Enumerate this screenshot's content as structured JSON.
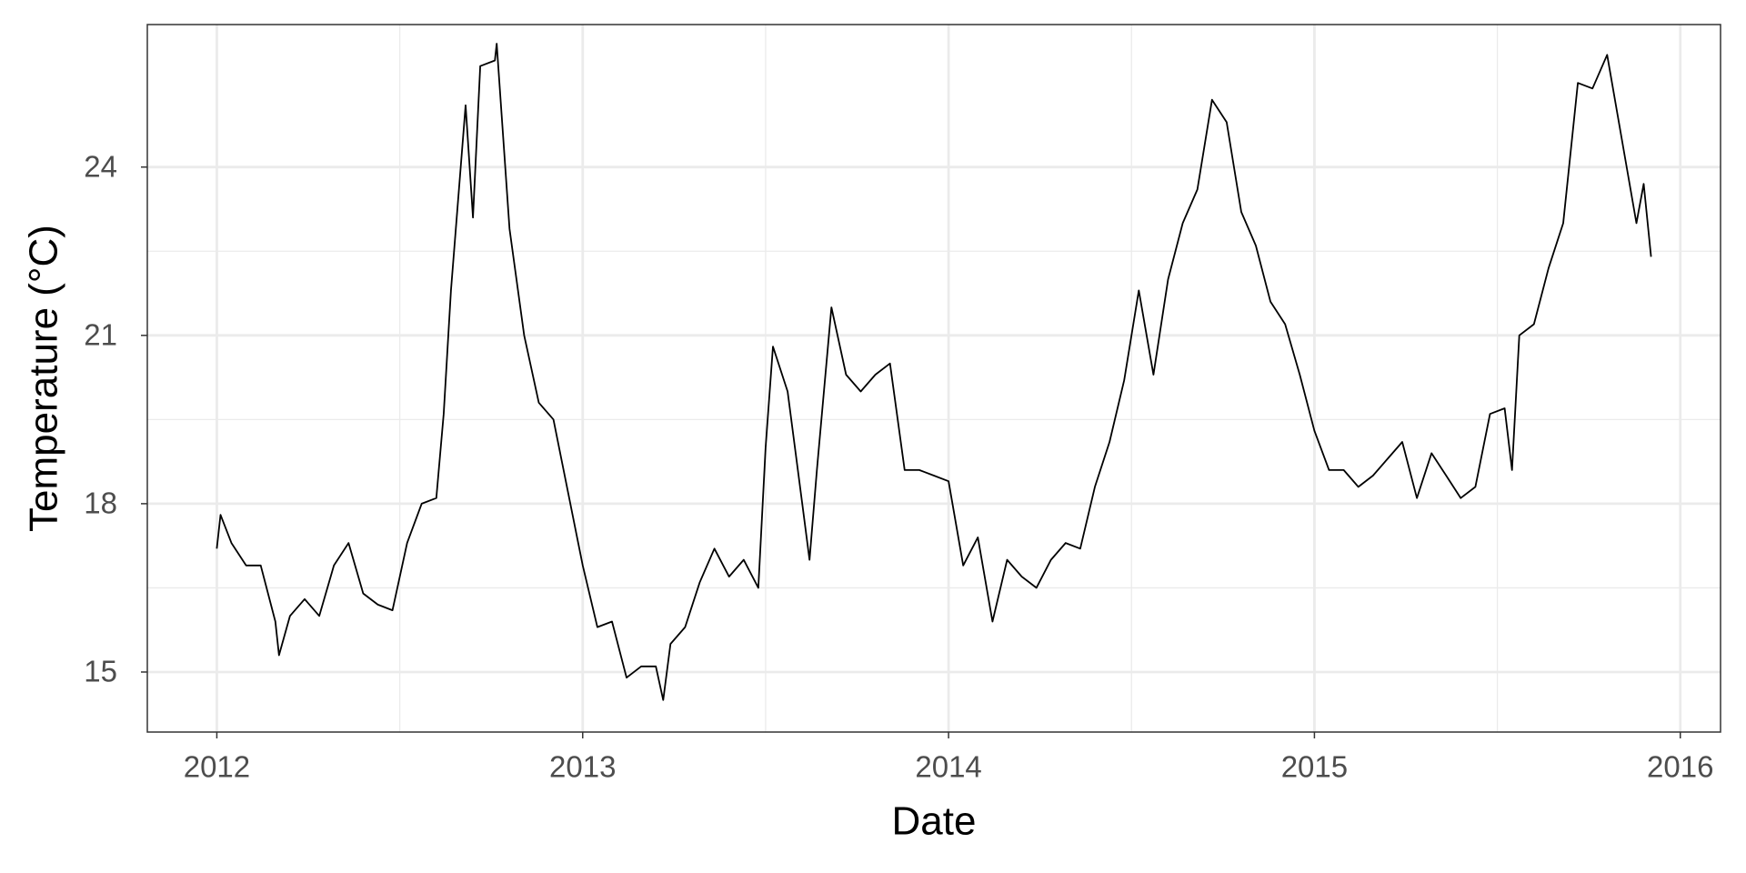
{
  "chart_data": {
    "type": "line",
    "x_label": "Date",
    "y_label": "Temperature (°C)",
    "grid": true,
    "xlim": [
      2011.81,
      2016.11
    ],
    "xticks": [
      2012,
      2013,
      2014,
      2015,
      2016
    ],
    "ylim": [
      13.93,
      26.54
    ],
    "yticks": [
      15,
      18,
      21,
      24
    ],
    "series": [
      {
        "color": "#000000",
        "x": [
          2012.0,
          2012.01,
          2012.04,
          2012.08,
          2012.12,
          2012.16,
          2012.17,
          2012.2,
          2012.24,
          2012.28,
          2012.32,
          2012.36,
          2012.4,
          2012.44,
          2012.48,
          2012.52,
          2012.56,
          2012.6,
          2012.62,
          2012.64,
          2012.68,
          2012.7,
          2012.72,
          2012.76,
          2012.765,
          2012.8,
          2012.84,
          2012.88,
          2012.92,
          2012.96,
          2013.0,
          2013.04,
          2013.08,
          2013.12,
          2013.16,
          2013.2,
          2013.22,
          2013.24,
          2013.28,
          2013.32,
          2013.36,
          2013.4,
          2013.44,
          2013.48,
          2013.5,
          2013.52,
          2013.56,
          2013.6,
          2013.62,
          2013.64,
          2013.68,
          2013.72,
          2013.76,
          2013.8,
          2013.84,
          2013.88,
          2013.92,
          2013.96,
          2014.0,
          2014.04,
          2014.08,
          2014.12,
          2014.16,
          2014.2,
          2014.24,
          2014.28,
          2014.32,
          2014.36,
          2014.4,
          2014.44,
          2014.48,
          2014.52,
          2014.56,
          2014.6,
          2014.64,
          2014.68,
          2014.72,
          2014.76,
          2014.8,
          2014.84,
          2014.88,
          2014.92,
          2014.96,
          2015.0,
          2015.04,
          2015.08,
          2015.12,
          2015.16,
          2015.2,
          2015.24,
          2015.28,
          2015.32,
          2015.36,
          2015.4,
          2015.44,
          2015.48,
          2015.52,
          2015.54,
          2015.56,
          2015.6,
          2015.64,
          2015.68,
          2015.72,
          2015.76,
          2015.8,
          2015.84,
          2015.88,
          2015.9,
          2015.92
        ],
        "values": [
          17.2,
          17.8,
          17.3,
          16.9,
          16.9,
          15.9,
          15.3,
          16.0,
          16.3,
          16.0,
          16.9,
          17.3,
          16.4,
          16.2,
          16.1,
          17.3,
          18.0,
          18.1,
          19.6,
          21.8,
          25.1,
          23.1,
          25.8,
          25.9,
          26.2,
          22.9,
          21.0,
          19.8,
          19.5,
          18.2,
          16.9,
          15.8,
          15.9,
          14.9,
          15.1,
          15.1,
          14.5,
          15.5,
          15.8,
          16.6,
          17.2,
          16.7,
          17.0,
          16.5,
          19.0,
          20.8,
          20.0,
          18.0,
          17.0,
          18.6,
          21.5,
          20.3,
          20.0,
          20.3,
          20.5,
          18.6,
          18.6,
          18.5,
          18.4,
          16.9,
          17.4,
          15.9,
          17.0,
          16.7,
          16.5,
          17.0,
          17.3,
          17.2,
          18.3,
          19.1,
          20.2,
          21.8,
          20.3,
          22.0,
          23.0,
          23.6,
          25.2,
          24.8,
          23.2,
          22.6,
          21.6,
          21.2,
          20.3,
          19.3,
          18.6,
          18.6,
          18.3,
          18.5,
          18.8,
          19.1,
          18.1,
          18.9,
          18.5,
          18.1,
          18.3,
          19.6,
          19.7,
          18.6,
          21.0,
          21.2,
          22.2,
          23.0,
          25.5,
          25.4,
          26.0,
          24.5,
          23.0,
          23.7,
          22.4
        ]
      }
    ]
  }
}
